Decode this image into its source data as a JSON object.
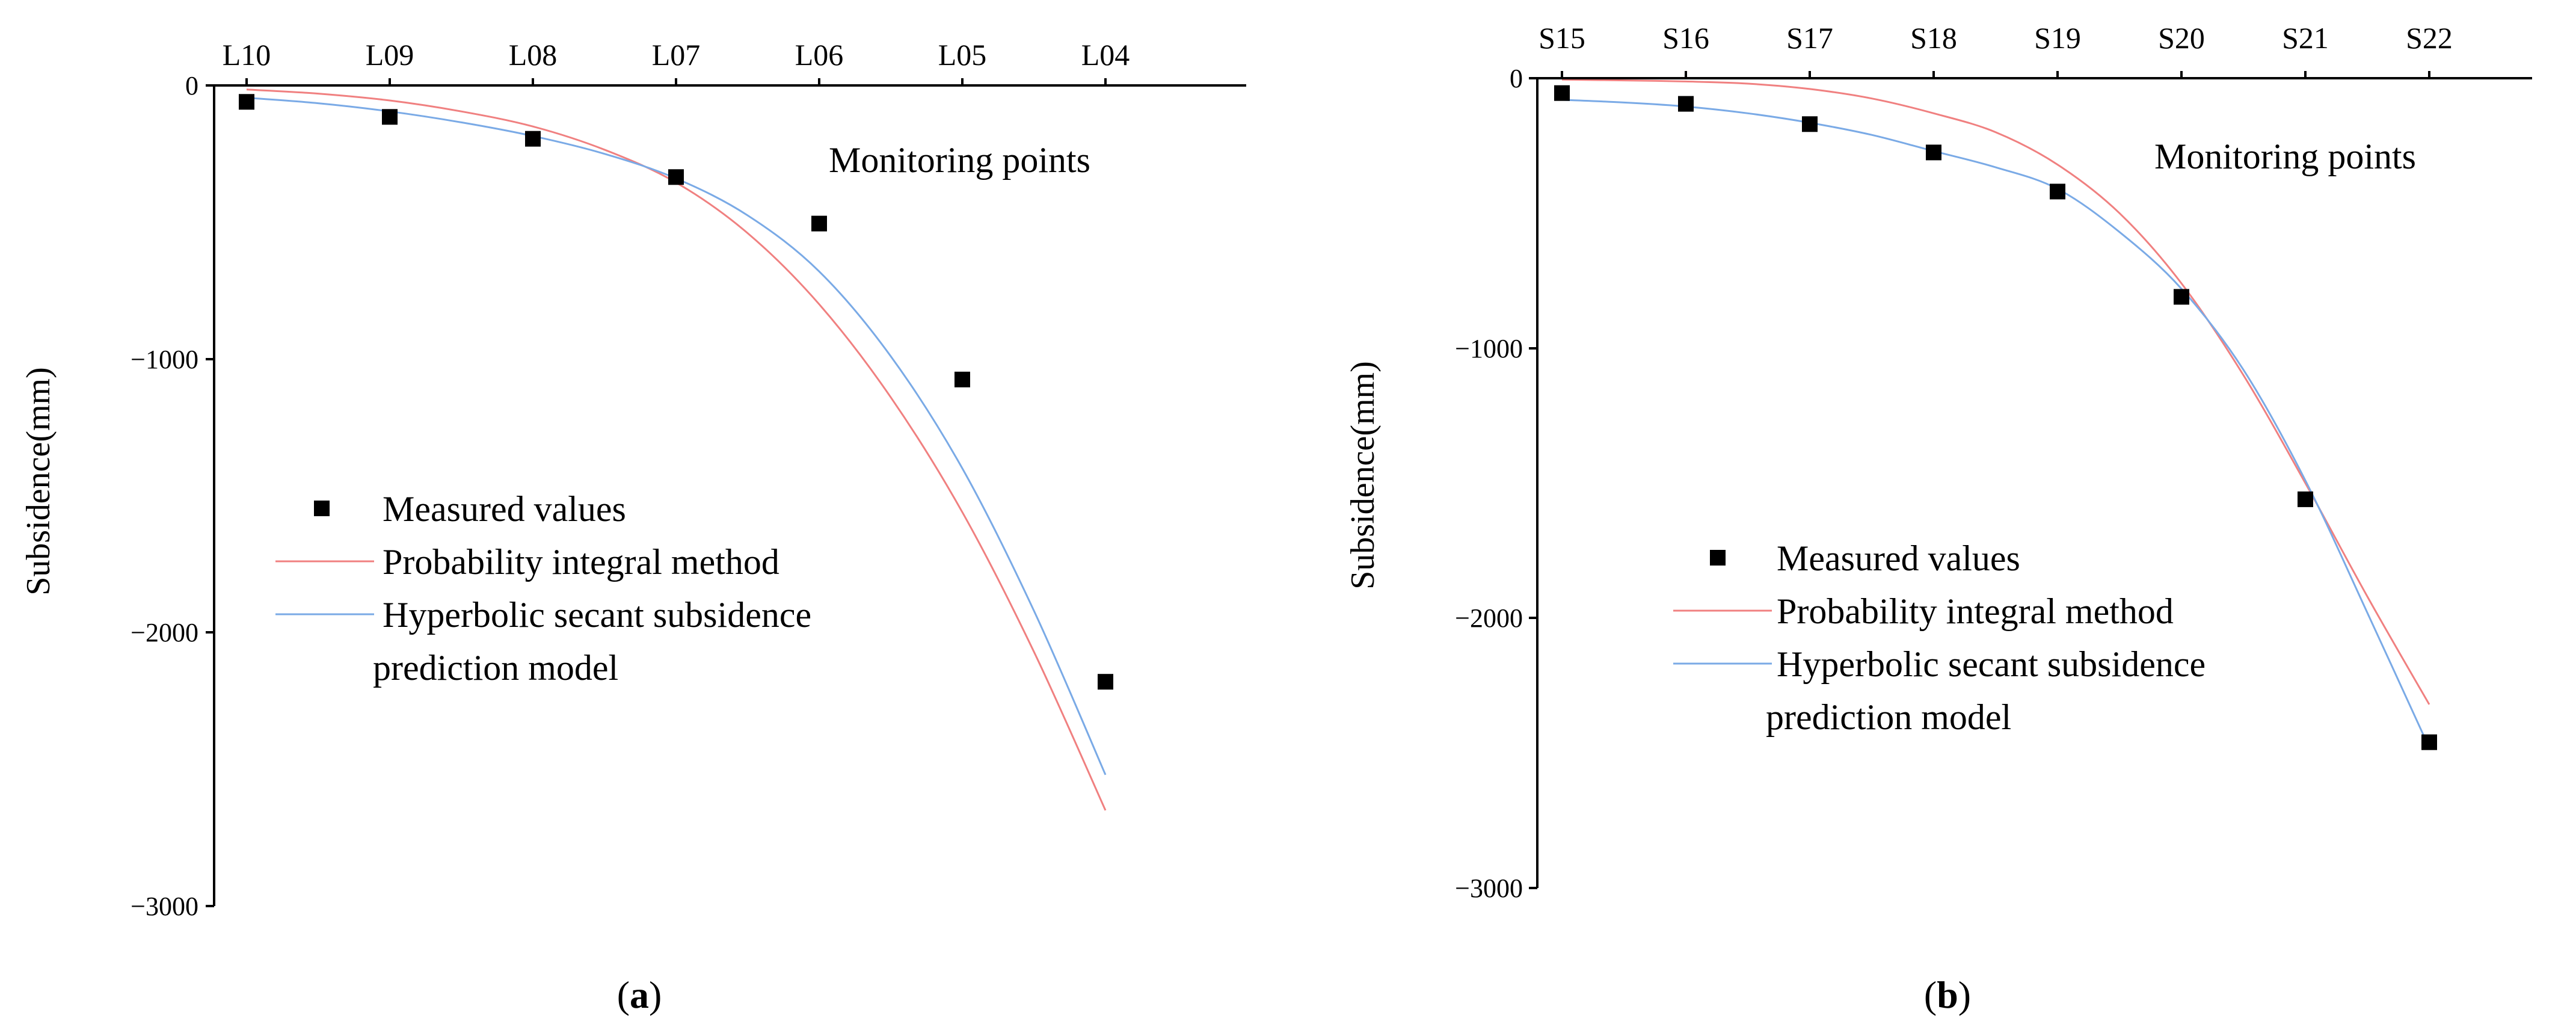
{
  "colors": {
    "measured": "#000000",
    "probability": "#f08080",
    "hyperbolic": "#7aaae6",
    "axis": "#000000"
  },
  "chart_data": [
    {
      "panel": "(a)",
      "panel_letter": "a",
      "type": "line",
      "xlabel": "Monitoring points",
      "ylabel": "Subsidence(mm)",
      "x_axis_position": "top",
      "categories": [
        "L10",
        "L09",
        "L08",
        "L07",
        "L06",
        "L05",
        "L04"
      ],
      "ylim": [
        -3000,
        0
      ],
      "yticks": [
        0,
        -1000,
        -2000,
        -3000
      ],
      "ytick_labels": [
        "0",
        "−1000",
        "−2000",
        "−3000"
      ],
      "legend": [
        "Measured values",
        "Probability integral method",
        "Hyperbolic secant subsidence",
        "prediction model"
      ],
      "legend_position": "lower-left",
      "series": [
        {
          "name": "Measured values",
          "kind": "scatter",
          "values": [
            -60,
            -115,
            -195,
            -335,
            -505,
            -1075,
            -2180
          ]
        },
        {
          "name": "Probability integral method",
          "kind": "line",
          "x": [
            0,
            0.5,
            1,
            1.5,
            2,
            2.5,
            3,
            3.5,
            4,
            4.5,
            5,
            5.5,
            6
          ],
          "values": [
            -15,
            -30,
            -55,
            -95,
            -150,
            -235,
            -355,
            -540,
            -800,
            -1140,
            -1560,
            -2070,
            -2650
          ]
        },
        {
          "name": "Hyperbolic secant subsidence prediction model",
          "kind": "line",
          "x": [
            0,
            0.5,
            1,
            1.5,
            2,
            2.5,
            3,
            3.5,
            4,
            4.5,
            5,
            5.5,
            6
          ],
          "values": [
            -45,
            -65,
            -95,
            -135,
            -185,
            -250,
            -340,
            -475,
            -680,
            -990,
            -1400,
            -1920,
            -2520
          ]
        }
      ]
    },
    {
      "panel": "(b)",
      "panel_letter": "b",
      "type": "line",
      "xlabel": "Monitoring points",
      "ylabel": "Subsidence(mm)",
      "x_axis_position": "top",
      "categories": [
        "S15",
        "S16",
        "S17",
        "S18",
        "S19",
        "S20",
        "S21",
        "S22"
      ],
      "ylim": [
        -3000,
        0
      ],
      "yticks": [
        0,
        -1000,
        -2000,
        -3000
      ],
      "ytick_labels": [
        "0",
        "−1000",
        "−2000",
        "−3000"
      ],
      "legend": [
        "Measured values",
        "Probability integral method",
        "Hyperbolic secant subsidence",
        "prediction model"
      ],
      "legend_position": "lower-left",
      "series": [
        {
          "name": "Measured values",
          "kind": "scatter",
          "values": [
            -55,
            -95,
            -170,
            -275,
            -420,
            -810,
            -1560,
            -2460
          ]
        },
        {
          "name": "Probability integral method",
          "kind": "line",
          "x": [
            0,
            0.5,
            1,
            1.5,
            2,
            2.5,
            3,
            3.5,
            4,
            4.5,
            5,
            5.5,
            6,
            6.5,
            7
          ],
          "values": [
            -5,
            -8,
            -12,
            -20,
            -40,
            -75,
            -130,
            -200,
            -320,
            -500,
            -760,
            -1100,
            -1500,
            -1920,
            -2320
          ]
        },
        {
          "name": "Hyperbolic secant subsidence prediction model",
          "kind": "line",
          "x": [
            0,
            0.5,
            1,
            1.5,
            2,
            2.5,
            3,
            3.5,
            4,
            4.5,
            5,
            5.5,
            6,
            6.5,
            7
          ],
          "values": [
            -80,
            -90,
            -105,
            -130,
            -165,
            -210,
            -270,
            -330,
            -410,
            -570,
            -780,
            -1080,
            -1490,
            -1980,
            -2480
          ]
        }
      ]
    }
  ]
}
